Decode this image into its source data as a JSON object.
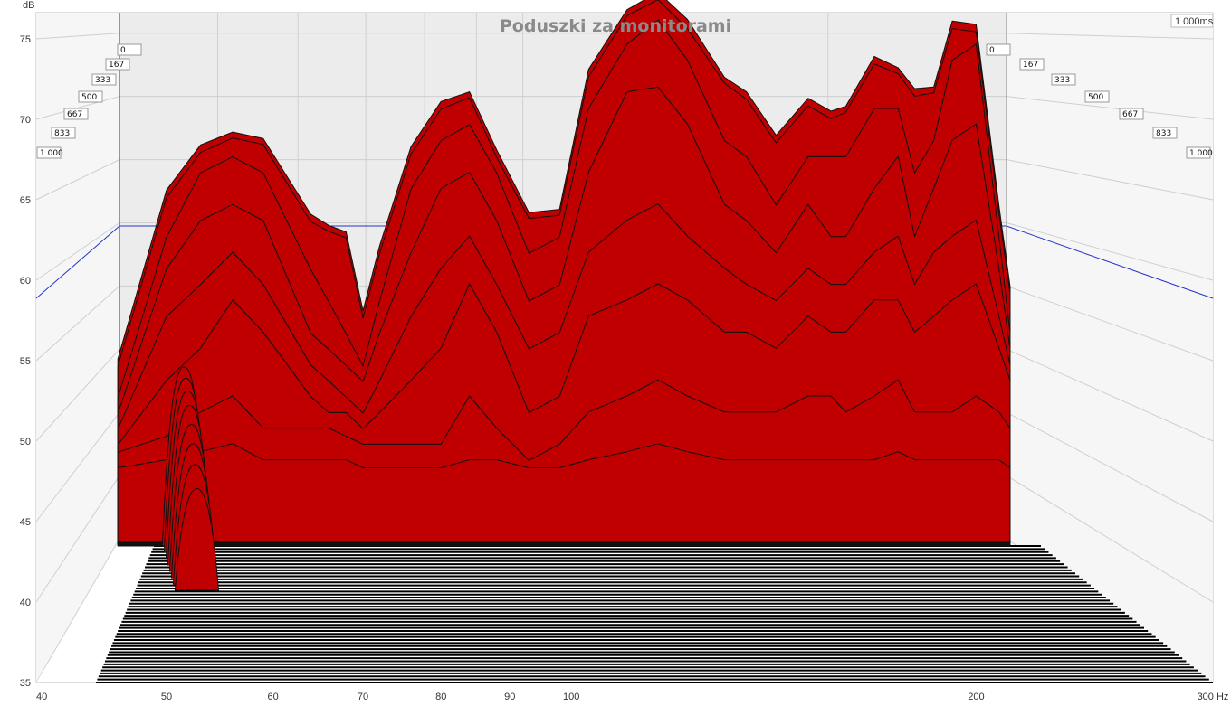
{
  "chart_data": {
    "type": "area",
    "title": "Poduszki za monitorami",
    "xlabel": "Hz",
    "ylabel": "dB",
    "xscale": "log",
    "xlim": [
      40,
      300
    ],
    "ylim": [
      35,
      77
    ],
    "x_ticks": [
      40,
      50,
      60,
      70,
      80,
      90,
      100,
      200,
      300
    ],
    "x_tick_labels": [
      "40",
      "50",
      "60",
      "70",
      "80",
      "90",
      "100",
      "200",
      "300 Hz"
    ],
    "y_ticks": [
      75,
      70,
      65,
      60,
      55,
      50,
      45,
      40,
      35
    ],
    "y_tick_labels": [
      "75",
      "70",
      "65",
      "60",
      "55",
      "50",
      "45",
      "40",
      "35"
    ],
    "time_unit": "ms",
    "time_end_label": "1 000ms",
    "time_labels_left": [
      "0",
      "167",
      "333",
      "500",
      "667",
      "833",
      "1 000"
    ],
    "time_labels_right": [
      "0",
      "167",
      "333",
      "500",
      "667",
      "833",
      "1 000"
    ],
    "fill_color": "#c00000",
    "grid": true,
    "series": [
      {
        "time_ms": 0,
        "x": [
          46,
          50,
          53,
          56,
          59,
          64,
          66,
          68,
          70,
          72,
          76,
          80,
          84,
          88,
          93,
          98,
          103,
          110,
          116,
          122,
          130,
          135,
          142,
          150,
          156,
          160,
          168,
          175,
          180,
          186,
          192,
          200,
          208,
          212
        ],
        "y": [
          50.5,
          61,
          63.8,
          64.6,
          64.2,
          59.5,
          58.8,
          58.4,
          53.5,
          57.5,
          63.7,
          66.5,
          67.1,
          63.5,
          59.6,
          59.8,
          68.5,
          72.2,
          73.3,
          71.6,
          68,
          67.1,
          64.4,
          66.7,
          65.9,
          66.2,
          69.3,
          68.6,
          67.3,
          67.4,
          71.5,
          71.3,
          60,
          55
        ]
      },
      {
        "time_ms": 100,
        "x": [
          46,
          50,
          53,
          56,
          59,
          64,
          66,
          68,
          70,
          72,
          76,
          80,
          84,
          88,
          93,
          98,
          103,
          110,
          116,
          122,
          130,
          135,
          142,
          150,
          156,
          160,
          168,
          175,
          180,
          186,
          192,
          200,
          208,
          212
        ],
        "y": [
          50,
          60.5,
          63.3,
          64.2,
          63.8,
          59,
          58.4,
          58,
          53,
          57,
          63.2,
          66,
          66.7,
          63,
          59.2,
          59.4,
          68,
          71.8,
          72.8,
          71,
          67.6,
          66.6,
          63.9,
          66.2,
          65.4,
          65.8,
          68.8,
          68.2,
          66.8,
          67,
          71,
          70.8,
          59.5,
          54.5
        ]
      },
      {
        "time_ms": 200,
        "x": [
          46,
          50,
          53,
          56,
          59,
          64,
          66,
          68,
          70,
          72,
          76,
          80,
          84,
          88,
          93,
          98,
          103,
          110,
          116,
          122,
          130,
          135,
          142,
          150,
          156,
          160,
          168,
          175,
          180,
          186,
          192,
          200,
          208,
          212
        ],
        "y": [
          48,
          58,
          62,
          63,
          62,
          56,
          54,
          52,
          50,
          54,
          61,
          64,
          65,
          62,
          57,
          58,
          66,
          70,
          71.5,
          69,
          64,
          63,
          60,
          63,
          63,
          63,
          66,
          66,
          62,
          64,
          69,
          70,
          58,
          52
        ]
      },
      {
        "time_ms": 333,
        "x": [
          46,
          50,
          53,
          56,
          59,
          64,
          66,
          68,
          70,
          72,
          76,
          80,
          84,
          88,
          93,
          98,
          103,
          110,
          116,
          122,
          130,
          135,
          142,
          150,
          156,
          160,
          168,
          175,
          180,
          186,
          192,
          200,
          208,
          212
        ],
        "y": [
          47,
          56,
          59,
          60,
          59,
          52,
          51,
          50,
          49,
          52,
          57,
          61,
          62,
          59,
          54,
          55,
          62,
          67,
          67.3,
          65,
          60,
          59,
          57,
          60,
          58,
          58,
          61,
          63,
          58,
          61,
          64,
          65,
          56,
          51
        ]
      },
      {
        "time_ms": 500,
        "x": [
          46,
          50,
          53,
          56,
          59,
          64,
          66,
          68,
          70,
          72,
          76,
          80,
          84,
          88,
          93,
          98,
          103,
          110,
          116,
          122,
          130,
          135,
          142,
          150,
          156,
          160,
          168,
          175,
          180,
          186,
          192,
          200,
          208,
          212
        ],
        "y": [
          46,
          53,
          55,
          57,
          55,
          50,
          49,
          48,
          47,
          49,
          53,
          56,
          58,
          55,
          51,
          52,
          57,
          59,
          60,
          58,
          56,
          55,
          54,
          56,
          55,
          55,
          57,
          58,
          55,
          57,
          58,
          59,
          53,
          50
        ]
      },
      {
        "time_ms": 667,
        "x": [
          46,
          50,
          53,
          56,
          59,
          64,
          66,
          68,
          70,
          72,
          76,
          80,
          84,
          88,
          93,
          98,
          103,
          110,
          116,
          122,
          130,
          135,
          142,
          150,
          156,
          160,
          168,
          175,
          180,
          186,
          192,
          200,
          208,
          212
        ],
        "y": [
          45,
          49,
          51,
          54,
          52,
          48,
          47,
          47,
          46,
          47,
          49,
          51,
          55,
          52,
          47,
          48,
          53,
          54,
          55,
          54,
          52,
          52,
          51,
          53,
          52,
          52,
          54,
          54,
          52,
          53,
          54,
          55,
          51,
          49
        ]
      },
      {
        "time_ms": 833,
        "x": [
          46,
          50,
          53,
          56,
          59,
          64,
          66,
          68,
          70,
          72,
          76,
          80,
          84,
          88,
          93,
          98,
          103,
          110,
          116,
          122,
          130,
          135,
          142,
          150,
          156,
          160,
          168,
          175,
          180,
          186,
          192,
          200,
          208,
          212
        ],
        "y": [
          44.5,
          45.5,
          47,
          48,
          46,
          46,
          46,
          45.5,
          45,
          45,
          45,
          45,
          48,
          46,
          44,
          45,
          47,
          48,
          49,
          48,
          47,
          47,
          47,
          48,
          48,
          47,
          48,
          49,
          47,
          47,
          47,
          48,
          47,
          46
        ]
      },
      {
        "time_ms": 1000,
        "x": [
          46,
          50,
          53,
          56,
          59,
          64,
          66,
          68,
          70,
          72,
          76,
          80,
          84,
          88,
          93,
          98,
          103,
          110,
          116,
          122,
          130,
          135,
          142,
          150,
          156,
          160,
          168,
          175,
          180,
          186,
          192,
          200,
          208,
          212
        ],
        "y": [
          43.5,
          44,
          44.5,
          45,
          44,
          44,
          44,
          44,
          43.5,
          43.5,
          43.5,
          43.5,
          44,
          44,
          43.5,
          43.5,
          44,
          44.5,
          45,
          44.5,
          44,
          44,
          44,
          44,
          44,
          44,
          44,
          44.5,
          44,
          44,
          44,
          44,
          44,
          43.5
        ]
      }
    ],
    "low_freq_ridge": {
      "x_hz": 52.5,
      "peak_db": [
        50,
        49.7,
        49.3,
        48.8,
        48,
        47.2,
        46.3,
        45.2
      ]
    }
  }
}
